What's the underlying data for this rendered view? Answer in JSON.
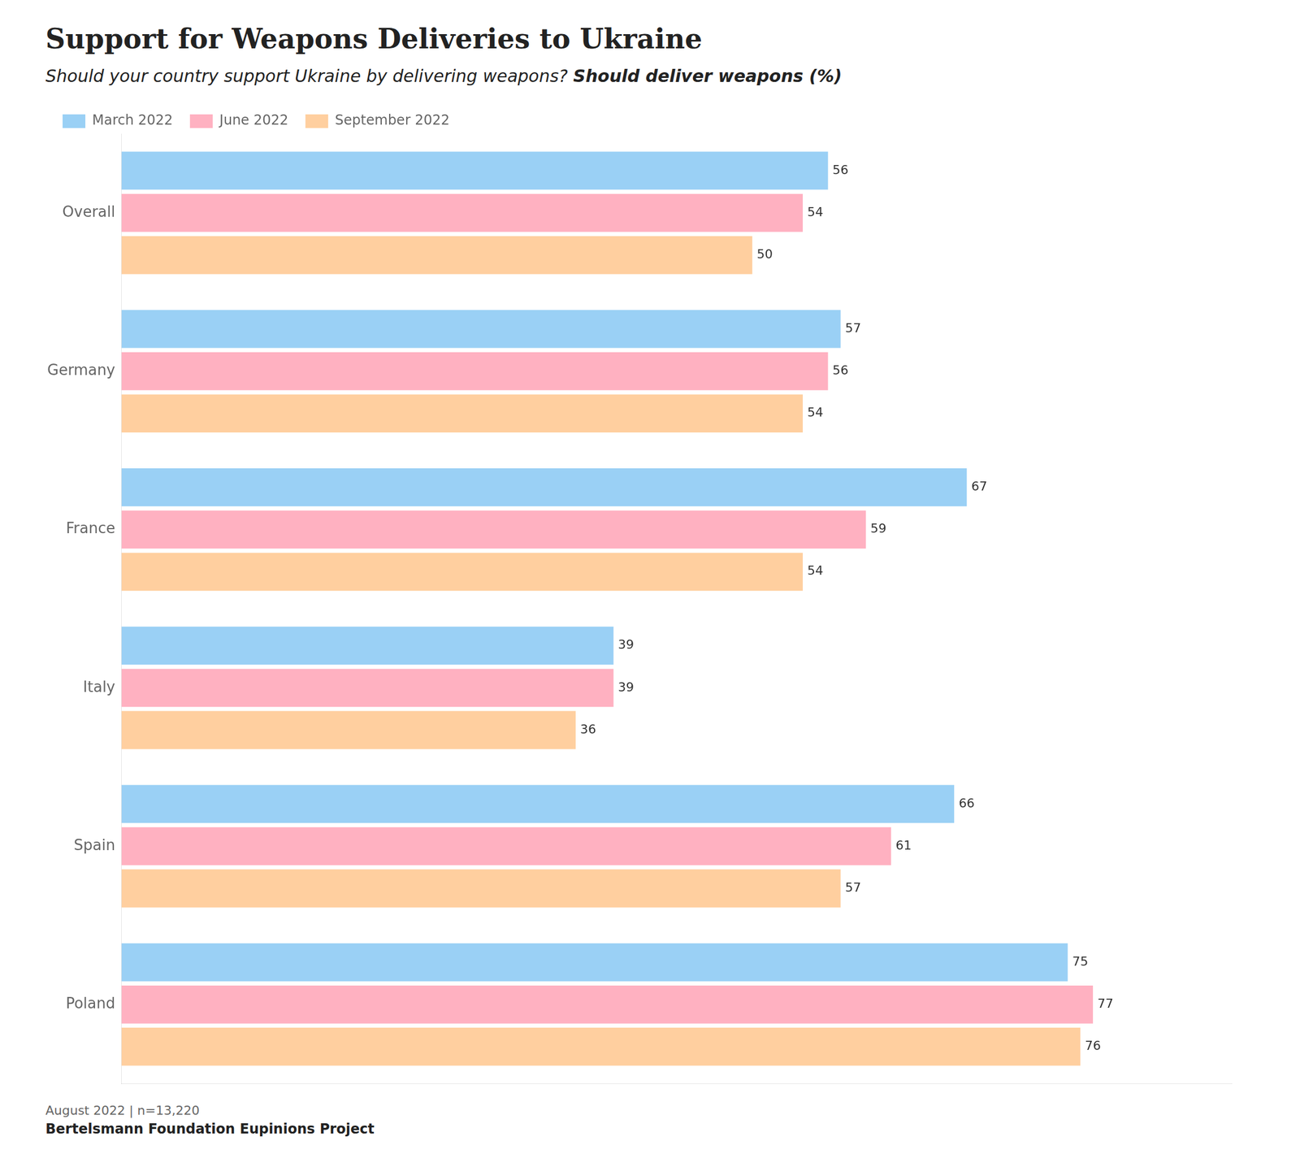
{
  "chart_data": {
    "type": "bar",
    "orientation": "horizontal",
    "title": "Support for Weapons Deliveries to Ukraine",
    "subtitle": "Should your country support Ukraine by delivering weapons?",
    "annotations": [
      "Should deliver weapons (%)",
      "August 2022 | n=13,220",
      "Bertelsmann Foundation Eupinions Project"
    ],
    "categories": [
      "Overall",
      "Germany",
      "France",
      "Italy",
      "Spain",
      "Poland"
    ],
    "series": [
      {
        "name": "March 2022",
        "values": [
          56,
          57,
          67,
          39,
          66,
          75
        ]
      },
      {
        "name": "June 2022",
        "values": [
          54,
          56,
          59,
          39,
          61,
          77
        ]
      },
      {
        "name": "September 2022",
        "values": [
          50,
          54,
          54,
          36,
          57,
          76
        ]
      }
    ],
    "xlim": [
      0,
      88
    ],
    "xticks": [],
    "grid": false,
    "legend": "top",
    "data_labels": true,
    "tick_labels": "y"
  }
}
